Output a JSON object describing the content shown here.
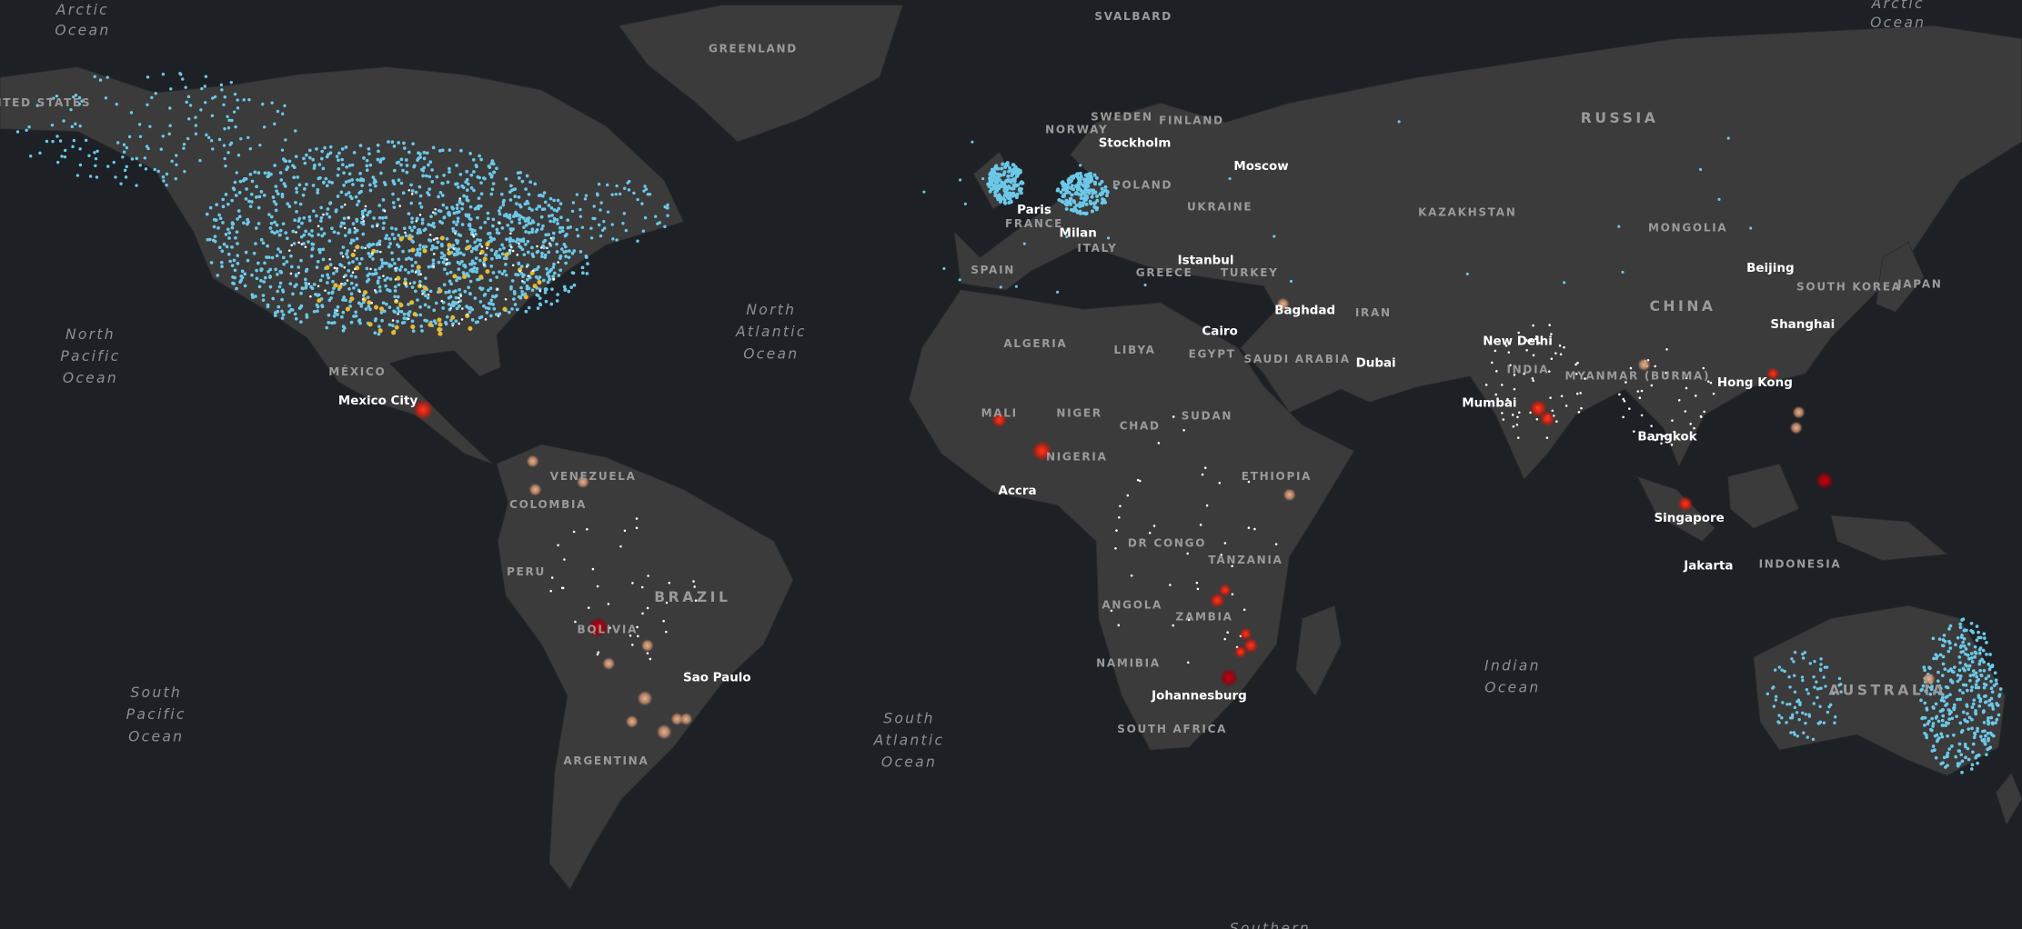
{
  "ocean_labels": [
    [
      "Arctic",
      "Ocean"
    ],
    [
      "Arctic",
      "Ocean"
    ],
    [
      "North",
      "Pacific",
      "Ocean"
    ],
    [
      "North",
      "Atlantic",
      "Ocean"
    ],
    [
      "South",
      "Pacific",
      "Ocean"
    ],
    [
      "South",
      "Atlantic",
      "Ocean"
    ],
    [
      "Indian",
      "Ocean"
    ],
    [
      "Southern"
    ]
  ],
  "country_labels": [
    "SVALBARD",
    "GREENLAND",
    "UNITED STATES",
    "MÉXICO",
    "VENEZUELA",
    "COLOMBIA",
    "PERU",
    "BRAZIL",
    "BOLIVIA",
    "ARGENTINA",
    "NORWAY",
    "SWEDEN",
    "FINLAND",
    "POLAND",
    "UKRAINE",
    "FRANCE",
    "SPAIN",
    "ITALY",
    "GREECE",
    "TURKEY",
    "RUSSIA",
    "KAZAKHSTAN",
    "MONGOLIA",
    "CHINA",
    "SOUTH KOREA",
    "JAPAN",
    "IRAN",
    "SAUDI ARABIA",
    "ALGERIA",
    "LIBYA",
    "EGYPT",
    "MALI",
    "NIGER",
    "CHAD",
    "SUDAN",
    "NIGERIA",
    "ETHIOPIA",
    "DR CONGO",
    "TANZANIA",
    "ANGOLA",
    "ZAMBIA",
    "NAMIBIA",
    "SOUTH AFRICA",
    "INDIA",
    "MYANMAR (BURMA)",
    "INDONESIA",
    "AUSTRALIA"
  ],
  "city_labels": [
    "Mexico City",
    "Sao Paulo",
    "Accra",
    "Paris",
    "Milan",
    "Stockholm",
    "Moscow",
    "Istanbul",
    "Cairo",
    "Baghdad",
    "Dubai",
    "New Delhi",
    "Mumbai",
    "Bangkok",
    "Singapore",
    "Jakarta",
    "Hong Kong",
    "Shanghai",
    "Beijing",
    "Johannesburg"
  ]
}
